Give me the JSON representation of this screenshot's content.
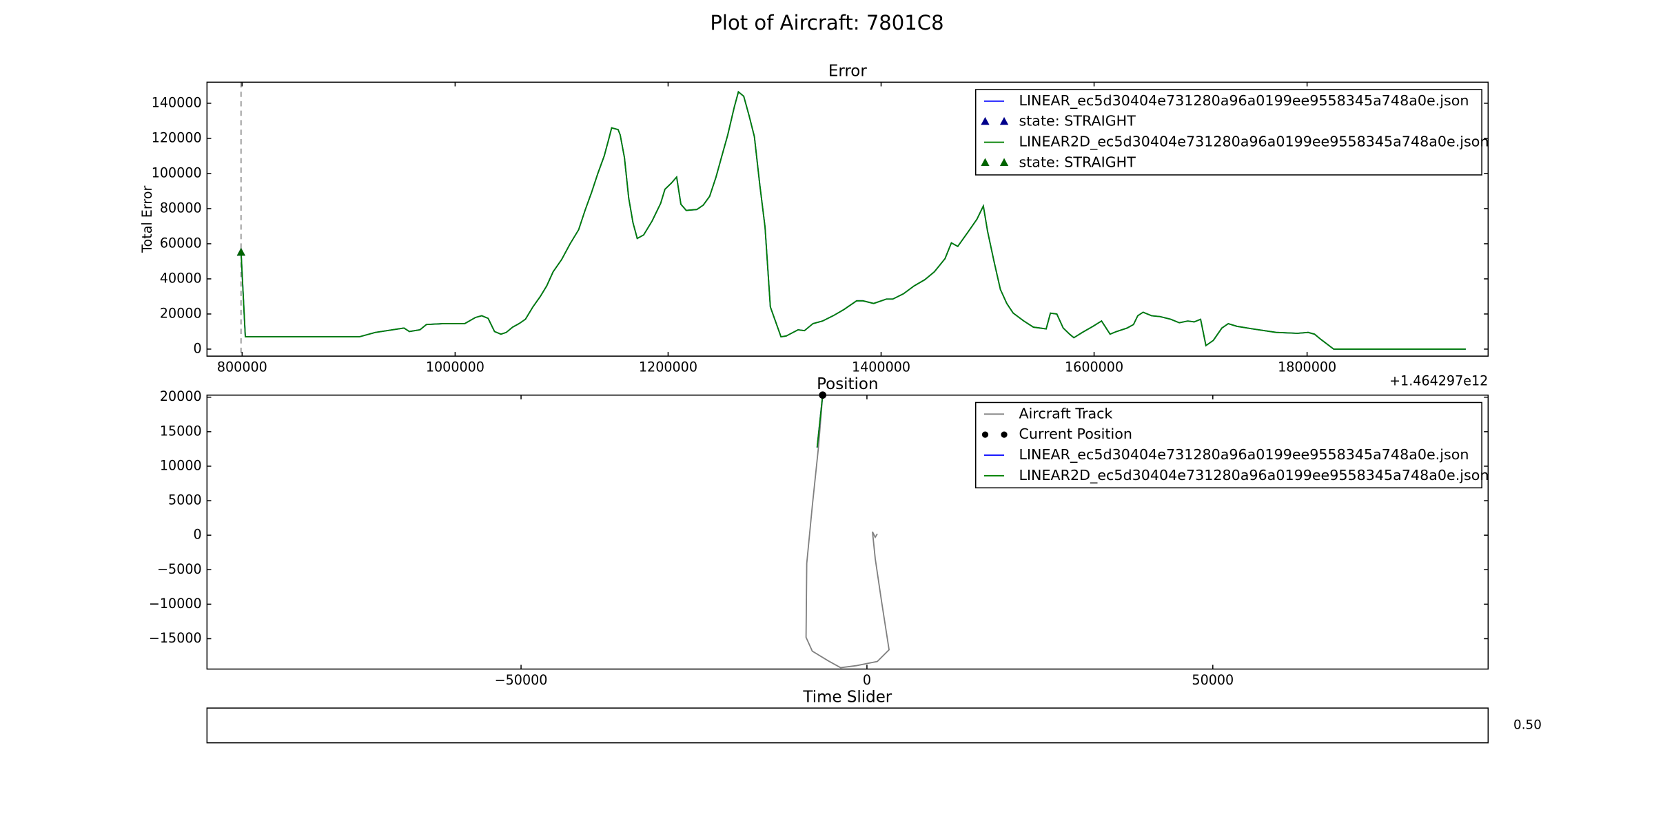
{
  "title": "Plot of Aircraft: 7801C8",
  "chart_data": [
    {
      "type": "line",
      "title": "Error",
      "y_label": "Total Error",
      "x_offset_label": "+1.464297e12",
      "xlim": [
        767000,
        1970000
      ],
      "ylim": [
        -4000,
        152000
      ],
      "xticks": [
        800000,
        1000000,
        1200000,
        1400000,
        1600000,
        1800000
      ],
      "yticks": [
        0,
        20000,
        40000,
        60000,
        80000,
        100000,
        120000,
        140000
      ],
      "vline_x": 799000,
      "series": [
        {
          "name": "LINEAR_ec5d30404e731280a96a0199ee9558345a748a0e.json",
          "color": "#0000ff",
          "style": "line",
          "x": [
            799000,
            803000,
            910000,
            925000,
            952000,
            957000,
            967000,
            973000,
            989000,
            1009000,
            1019000,
            1025000,
            1031000,
            1037000,
            1043000,
            1048000,
            1054000,
            1060000,
            1066000,
            1073000,
            1080000,
            1086000,
            1092000,
            1100000,
            1108000,
            1116000,
            1122000,
            1128000,
            1134000,
            1140000,
            1144000,
            1147000,
            1153000,
            1155000,
            1159000,
            1163000,
            1167000,
            1171000,
            1177000,
            1185000,
            1193000,
            1197000,
            1203000,
            1208000,
            1212000,
            1217000,
            1227000,
            1233000,
            1239000,
            1245000,
            1250000,
            1256000,
            1262000,
            1266000,
            1271000,
            1276000,
            1281000,
            1286000,
            1291000,
            1296000,
            1306000,
            1311000,
            1322000,
            1328000,
            1336000,
            1345000,
            1355000,
            1365000,
            1377000,
            1383000,
            1393000,
            1405000,
            1411000,
            1421000,
            1431000,
            1441000,
            1450000,
            1460000,
            1466000,
            1472000,
            1482000,
            1490000,
            1496000,
            1500000,
            1506000,
            1512000,
            1518000,
            1524000,
            1534000,
            1543000,
            1549000,
            1555000,
            1559000,
            1565000,
            1571000,
            1577000,
            1581000,
            1589000,
            1599000,
            1607000,
            1615000,
            1621000,
            1631000,
            1637000,
            1641000,
            1646000,
            1654000,
            1662000,
            1672000,
            1680000,
            1688000,
            1694000,
            1700000,
            1705000,
            1712000,
            1720000,
            1726000,
            1734000,
            1749000,
            1771000,
            1791000,
            1801000,
            1807000,
            1813000,
            1825000,
            1949000
          ],
          "values": [
            55000,
            7000,
            7000,
            9500,
            12000,
            10000,
            11000,
            14000,
            14500,
            14500,
            18000,
            19000,
            17500,
            10000,
            8500,
            9500,
            12500,
            14500,
            17000,
            24000,
            30000,
            36000,
            44000,
            51000,
            60000,
            68000,
            79000,
            89000,
            100000,
            110000,
            119000,
            126000,
            125000,
            122000,
            109000,
            86000,
            72000,
            63000,
            65000,
            73000,
            83000,
            91000,
            94500,
            98000,
            82500,
            79000,
            79500,
            82000,
            87000,
            98000,
            109000,
            122000,
            137500,
            146500,
            144000,
            133000,
            121000,
            94000,
            69500,
            24000,
            7000,
            7500,
            11000,
            10500,
            14500,
            16000,
            19000,
            22500,
            27500,
            27500,
            26000,
            28500,
            28500,
            31500,
            36000,
            39500,
            44000,
            51500,
            60500,
            58500,
            67000,
            74000,
            81500,
            67000,
            50000,
            34000,
            26000,
            20500,
            16000,
            12500,
            12000,
            11500,
            20500,
            20000,
            12000,
            8500,
            6500,
            9500,
            13000,
            16000,
            8500,
            10000,
            12000,
            14000,
            19000,
            21000,
            19000,
            18500,
            17000,
            15000,
            16000,
            15500,
            17000,
            2000,
            5000,
            12000,
            14500,
            13000,
            11500,
            9500,
            9000,
            9500,
            8500,
            5500,
            0,
            0
          ]
        },
        {
          "name": "state: STRAIGHT",
          "color": "#00008b",
          "style": "triangle",
          "x": [
            799000
          ],
          "values": [
            55000
          ]
        },
        {
          "name": "LINEAR2D_ec5d30404e731280a96a0199ee9558345a748a0e.json",
          "color": "#008000",
          "style": "line",
          "x": [
            799000,
            803000,
            910000,
            925000,
            952000,
            957000,
            967000,
            973000,
            989000,
            1009000,
            1019000,
            1025000,
            1031000,
            1037000,
            1043000,
            1048000,
            1054000,
            1060000,
            1066000,
            1073000,
            1080000,
            1086000,
            1092000,
            1100000,
            1108000,
            1116000,
            1122000,
            1128000,
            1134000,
            1140000,
            1144000,
            1147000,
            1153000,
            1155000,
            1159000,
            1163000,
            1167000,
            1171000,
            1177000,
            1185000,
            1193000,
            1197000,
            1203000,
            1208000,
            1212000,
            1217000,
            1227000,
            1233000,
            1239000,
            1245000,
            1250000,
            1256000,
            1262000,
            1266000,
            1271000,
            1276000,
            1281000,
            1286000,
            1291000,
            1296000,
            1306000,
            1311000,
            1322000,
            1328000,
            1336000,
            1345000,
            1355000,
            1365000,
            1377000,
            1383000,
            1393000,
            1405000,
            1411000,
            1421000,
            1431000,
            1441000,
            1450000,
            1460000,
            1466000,
            1472000,
            1482000,
            1490000,
            1496000,
            1500000,
            1506000,
            1512000,
            1518000,
            1524000,
            1534000,
            1543000,
            1549000,
            1555000,
            1559000,
            1565000,
            1571000,
            1577000,
            1581000,
            1589000,
            1599000,
            1607000,
            1615000,
            1621000,
            1631000,
            1637000,
            1641000,
            1646000,
            1654000,
            1662000,
            1672000,
            1680000,
            1688000,
            1694000,
            1700000,
            1705000,
            1712000,
            1720000,
            1726000,
            1734000,
            1749000,
            1771000,
            1791000,
            1801000,
            1807000,
            1813000,
            1825000,
            1949000
          ],
          "values": [
            55000,
            7000,
            7000,
            9500,
            12000,
            10000,
            11000,
            14000,
            14500,
            14500,
            18000,
            19000,
            17500,
            10000,
            8500,
            9500,
            12500,
            14500,
            17000,
            24000,
            30000,
            36000,
            44000,
            51000,
            60000,
            68000,
            79000,
            89000,
            100000,
            110000,
            119000,
            126000,
            125000,
            122000,
            109000,
            86000,
            72000,
            63000,
            65000,
            73000,
            83000,
            91000,
            94500,
            98000,
            82500,
            79000,
            79500,
            82000,
            87000,
            98000,
            109000,
            122000,
            137500,
            146500,
            144000,
            133000,
            121000,
            94000,
            69500,
            24000,
            7000,
            7500,
            11000,
            10500,
            14500,
            16000,
            19000,
            22500,
            27500,
            27500,
            26000,
            28500,
            28500,
            31500,
            36000,
            39500,
            44000,
            51500,
            60500,
            58500,
            67000,
            74000,
            81500,
            67000,
            50000,
            34000,
            26000,
            20500,
            16000,
            12500,
            12000,
            11500,
            20500,
            20000,
            12000,
            8500,
            6500,
            9500,
            13000,
            16000,
            8500,
            10000,
            12000,
            14000,
            19000,
            21000,
            19000,
            18500,
            17000,
            15000,
            16000,
            15500,
            17000,
            2000,
            5000,
            12000,
            14500,
            13000,
            11500,
            9500,
            9000,
            9500,
            8500,
            5500,
            0,
            0
          ]
        },
        {
          "name": "state: STRAIGHT",
          "color": "#006400",
          "style": "triangle",
          "x": [
            799000
          ],
          "values": [
            55000
          ]
        }
      ]
    },
    {
      "type": "line",
      "title": "Position",
      "xlim": [
        -95400,
        89800
      ],
      "ylim": [
        -19400,
        20300
      ],
      "xticks": [
        {
          "value": -50000,
          "label": "−50000"
        },
        0,
        50000
      ],
      "yticks": [
        {
          "value": -15000,
          "label": "−15000"
        },
        {
          "value": -10000,
          "label": "−10000"
        },
        {
          "value": -5000,
          "label": "−5000"
        },
        0,
        5000,
        10000,
        15000,
        20000
      ],
      "series": [
        {
          "name": "Aircraft Track",
          "color": "#808080",
          "style": "line",
          "x": [
            -6400,
            -7000,
            -7900,
            -8700,
            -8800,
            -7900,
            -5600,
            -3800,
            -1500,
            1500,
            3200,
            2100,
            1200,
            800,
            1200,
            1500
          ],
          "values": [
            20300,
            12800,
            4200,
            -4100,
            -14800,
            -16800,
            -18200,
            -19200,
            -18900,
            -18300,
            -16600,
            -9500,
            -3400,
            500,
            -300,
            200
          ]
        },
        {
          "name": "Current Position",
          "color": "#000000",
          "style": "dot",
          "x": [
            -6400
          ],
          "values": [
            20300
          ]
        },
        {
          "name": "LINEAR_ec5d30404e731280a96a0199ee9558345a748a0e.json",
          "color": "#0000ff",
          "style": "line",
          "x": [
            -7200,
            -6400
          ],
          "values": [
            12700,
            20300
          ]
        },
        {
          "name": "LINEAR2D_ec5d30404e731280a96a0199ee9558345a748a0e.json",
          "color": "#008000",
          "style": "line",
          "x": [
            -7200,
            -6400
          ],
          "values": [
            12700,
            20300
          ]
        }
      ]
    },
    {
      "type": "slider",
      "title": "Time Slider",
      "value_label": "0.50"
    }
  ]
}
